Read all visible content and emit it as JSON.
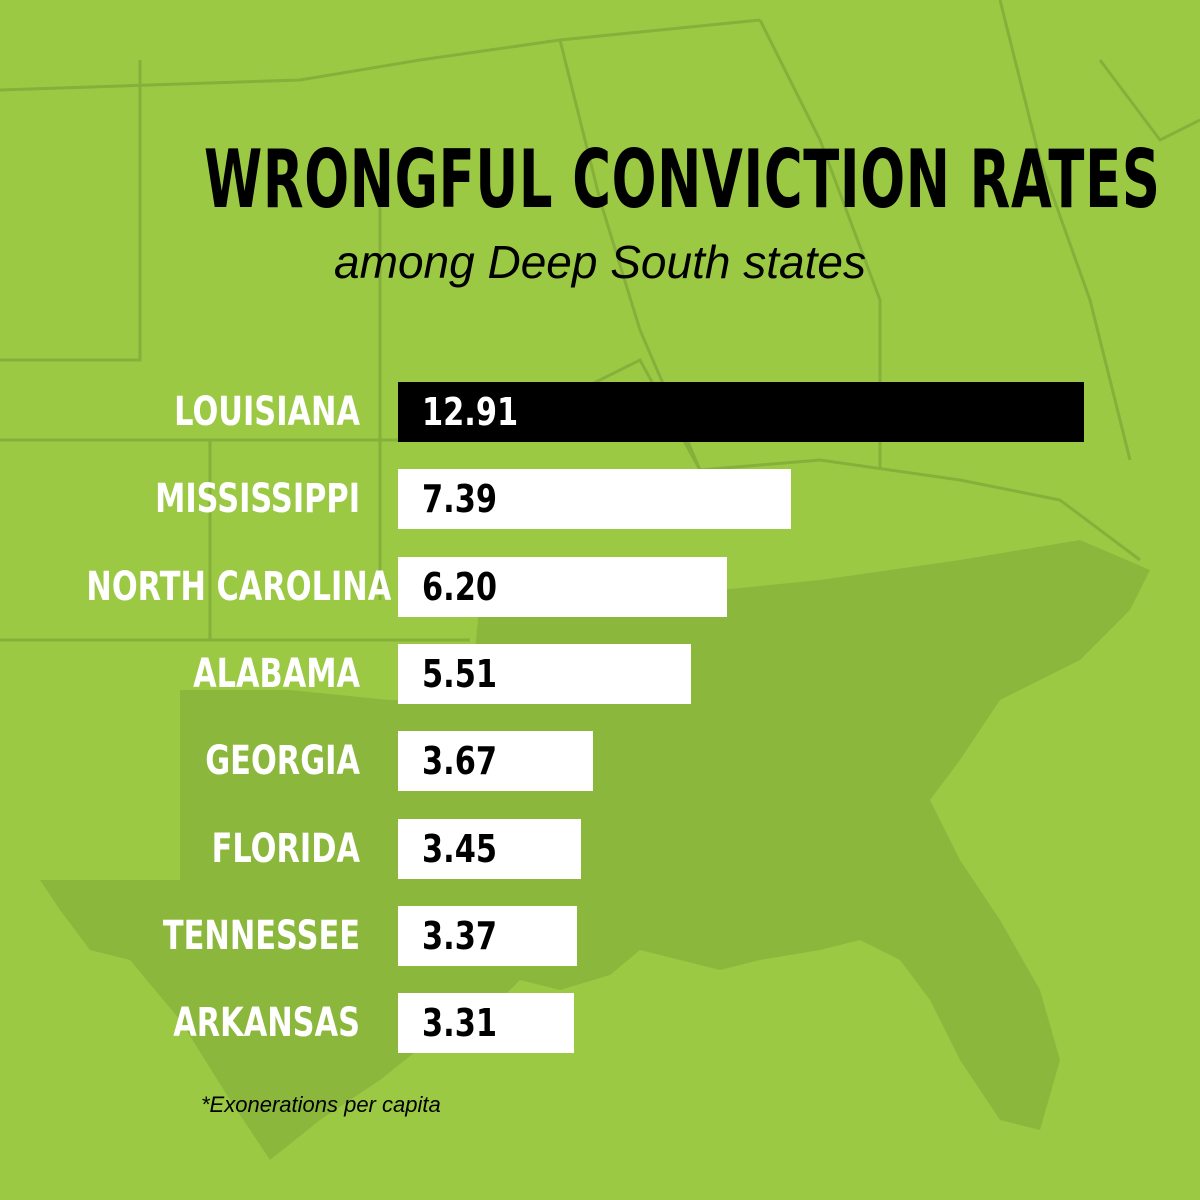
{
  "colors": {
    "background": "#9bc944",
    "map_shape": "#8bb83c",
    "map_lines": "#86b03a",
    "highlight_bar": "#000000",
    "bar": "#ffffff"
  },
  "chart_data": {
    "type": "bar",
    "orientation": "horizontal",
    "title": "WRONGFUL CONVICTION RATES",
    "subtitle": "among Deep South states",
    "categories": [
      "LOUISIANA",
      "MISSISSIPPI",
      "NORTH CAROLINA",
      "ALABAMA",
      "GEORGIA",
      "FLORIDA",
      "TENNESSEE",
      "ARKANSAS"
    ],
    "values": [
      12.91,
      7.39,
      6.2,
      5.51,
      3.67,
      3.45,
      3.37,
      3.31
    ],
    "value_labels": [
      "12.91",
      "7.39",
      "6.20",
      "5.51",
      "3.67",
      "3.45",
      "3.37",
      "3.31"
    ],
    "highlight_index": 0,
    "xlim": [
      0,
      12.91
    ],
    "grid": false,
    "footnote": "*Exonerations per capita",
    "background_graphic": "faded map of the southeastern United States"
  }
}
